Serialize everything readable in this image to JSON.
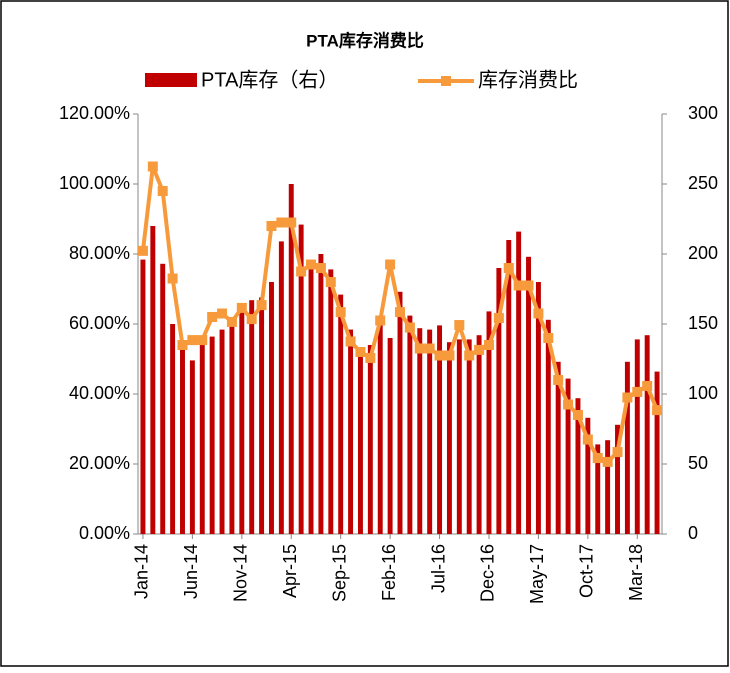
{
  "chart_data": {
    "type": "bar-line",
    "title": "PTA库存消费比",
    "categories": [
      "Jan-14",
      null,
      null,
      null,
      null,
      "Jun-14",
      null,
      null,
      null,
      null,
      "Nov-14",
      null,
      null,
      null,
      null,
      "Apr-15",
      null,
      null,
      null,
      null,
      "Sep-15",
      null,
      null,
      null,
      null,
      "Feb-16",
      null,
      null,
      null,
      null,
      "Jul-16",
      null,
      null,
      null,
      null,
      "Dec-16",
      null,
      null,
      null,
      null,
      "May-17",
      null,
      null,
      null,
      null,
      "Oct-17",
      null,
      null,
      null,
      null,
      "Mar-18",
      null,
      null
    ],
    "series": [
      {
        "name": "PTA库存（右）",
        "type": "bar",
        "axis": "y2",
        "color": "#c00000",
        "values": [
          196,
          220,
          193,
          150,
          135,
          124,
          139,
          141,
          146,
          149,
          165,
          167,
          169,
          180,
          209,
          250,
          221,
          194,
          200,
          189,
          171,
          146,
          133,
          135,
          151,
          140,
          173,
          156,
          147,
          146,
          149,
          137,
          139,
          139,
          142,
          159,
          190,
          210,
          216,
          198,
          180,
          153,
          123,
          111,
          97,
          83,
          64,
          67,
          78,
          123,
          139,
          142,
          116
        ]
      },
      {
        "name": "库存消费比",
        "type": "line",
        "color": "#f79a3c",
        "values": [
          80.9,
          105,
          98,
          73,
          54,
          55.4,
          55.4,
          62,
          63,
          60.6,
          64.6,
          61.4,
          65.4,
          88,
          89,
          89,
          75,
          77,
          76,
          72,
          63.4,
          55,
          52,
          50.3,
          61,
          77,
          63.4,
          59,
          53,
          53,
          51,
          51,
          59.7,
          51,
          52.6,
          54,
          61.7,
          76,
          71,
          71,
          63,
          56,
          44,
          37,
          34,
          27,
          21.7,
          20.6,
          23.4,
          39,
          40.6,
          42.3,
          35.4
        ]
      }
    ],
    "ylim": [
      0,
      120
    ],
    "yticks": [
      {
        "value": 0,
        "label": "0.00%"
      },
      {
        "value": 20,
        "label": "20.00%"
      },
      {
        "value": 40,
        "label": "40.00%"
      },
      {
        "value": 60,
        "label": "60.00%"
      },
      {
        "value": 80,
        "label": "80.00%"
      },
      {
        "value": 100,
        "label": "100.00%"
      },
      {
        "value": 120,
        "label": "120.00%"
      }
    ],
    "y2lim": [
      0,
      300
    ],
    "y2ticks": [
      0,
      50,
      100,
      150,
      200,
      250,
      300
    ]
  }
}
